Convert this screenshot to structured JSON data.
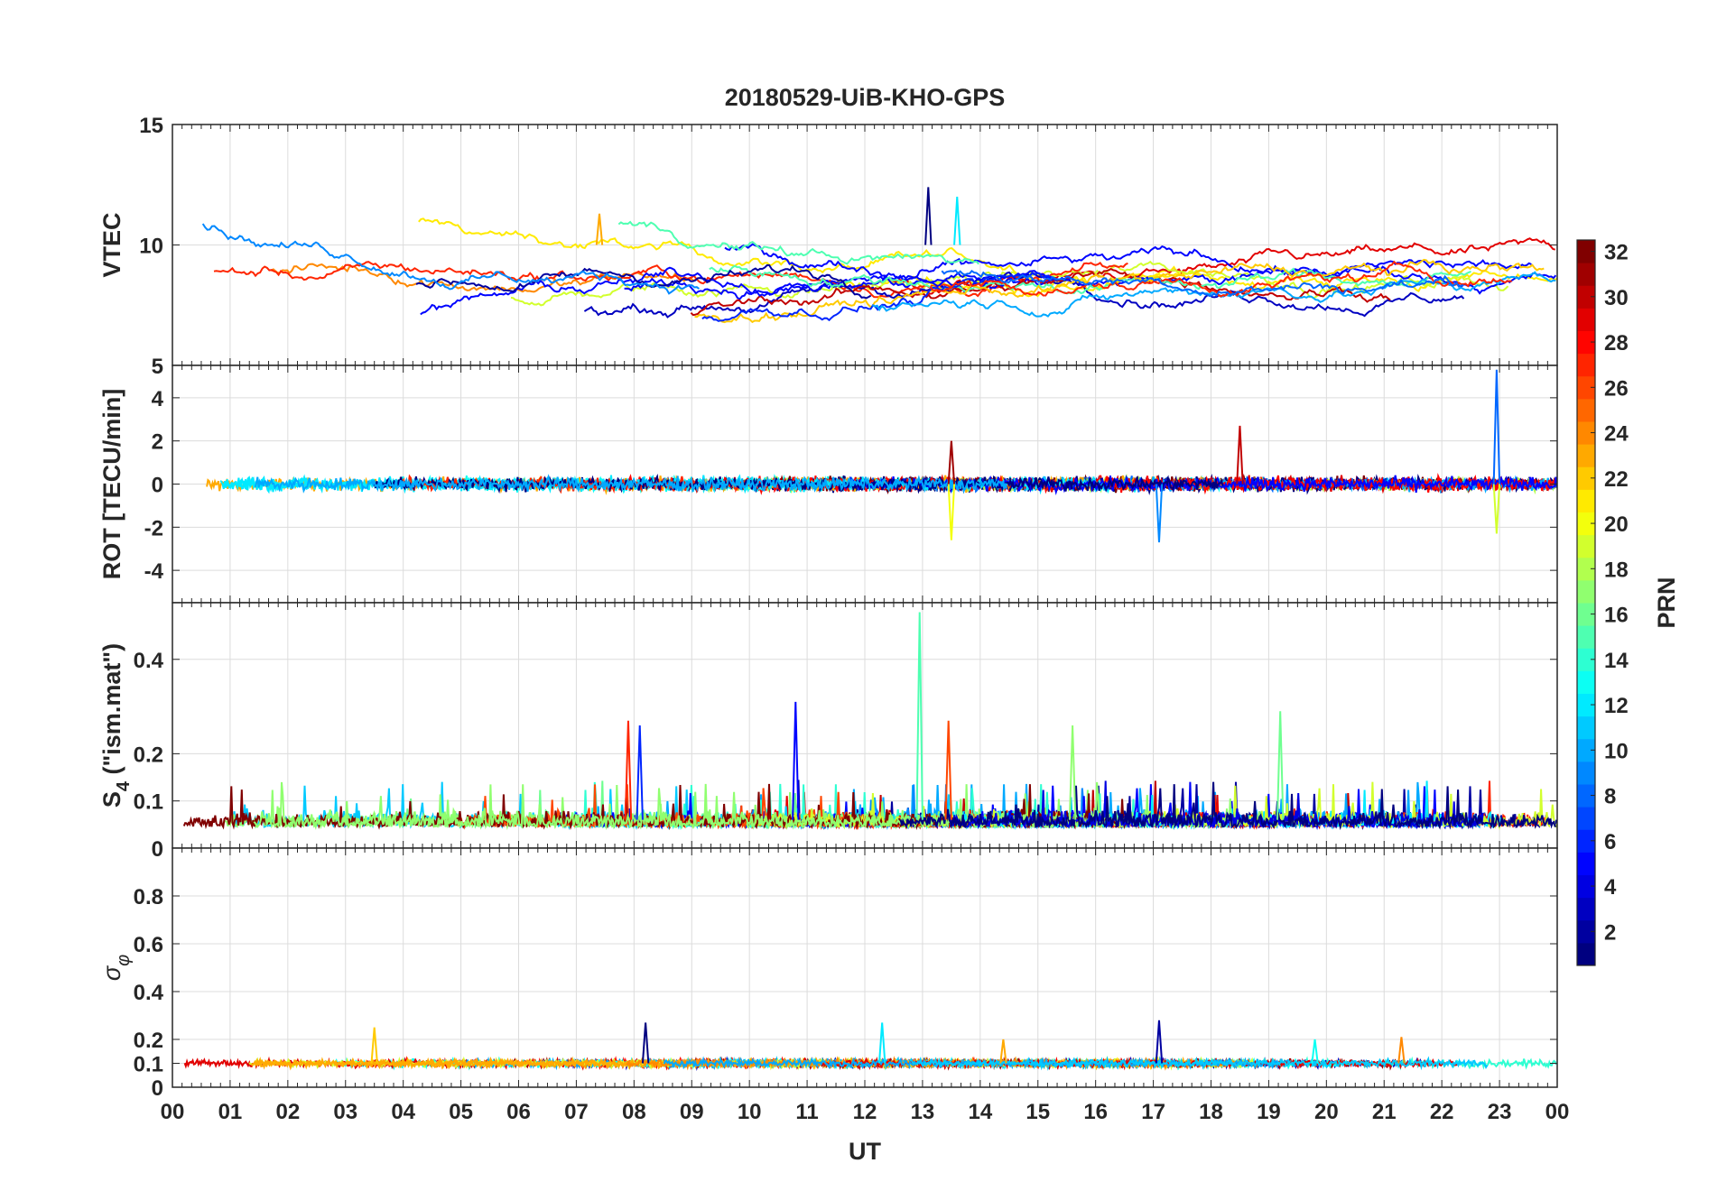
{
  "title": "20180529-UiB-KHO-GPS",
  "x_label": "UT",
  "colorbar": {
    "label": "PRN",
    "min": 1,
    "max": 32,
    "ticks": [
      "2",
      "4",
      "6",
      "8",
      "10",
      "12",
      "14",
      "16",
      "18",
      "20",
      "22",
      "24",
      "26",
      "28",
      "30",
      "32"
    ],
    "colormap": "jet"
  },
  "chart_data": [
    {
      "type": "line",
      "ylabel": "VTEC",
      "ylim": [
        5,
        15
      ],
      "yticks": [
        "5",
        "10",
        "15"
      ],
      "grid": true,
      "series_count": 32,
      "typical_range": [
        6.5,
        11
      ],
      "peaks": [
        {
          "x_hour": 13.1,
          "y": 12.4
        },
        {
          "x_hour": 13.6,
          "y": 12.0
        },
        {
          "x_hour": 7.4,
          "y": 11.3
        }
      ]
    },
    {
      "type": "line",
      "ylabel": "ROT [TECU/min]",
      "ylim": [
        -5.5,
        5.5
      ],
      "yticks": [
        "4",
        "2",
        "0",
        "-2",
        "-4"
      ],
      "grid": true,
      "series_count": 32,
      "typical_range": [
        -0.5,
        0.5
      ],
      "spikes": [
        {
          "x_hour": 22.95,
          "y": 5.3
        },
        {
          "x_hour": 22.95,
          "y": -2.3
        },
        {
          "x_hour": 18.5,
          "y": 2.7
        },
        {
          "x_hour": 17.1,
          "y": -2.7
        },
        {
          "x_hour": 13.5,
          "y": -2.6
        },
        {
          "x_hour": 13.5,
          "y": 2.0
        }
      ]
    },
    {
      "type": "line",
      "ylabel_main": "S",
      "ylabel_sub": "4",
      "ylabel_suffix": " (\"ism.mat\")",
      "ylim": [
        0,
        0.52
      ],
      "yticks": [
        "0.4",
        "0.2",
        "0.1",
        "0"
      ],
      "grid": true,
      "series_count": 32,
      "typical_range": [
        0.03,
        0.12
      ],
      "spikes": [
        {
          "x_hour": 12.95,
          "y": 0.5
        },
        {
          "x_hour": 13.45,
          "y": 0.27
        },
        {
          "x_hour": 10.8,
          "y": 0.31
        },
        {
          "x_hour": 19.2,
          "y": 0.29
        },
        {
          "x_hour": 7.9,
          "y": 0.27
        },
        {
          "x_hour": 8.1,
          "y": 0.26
        },
        {
          "x_hour": 15.6,
          "y": 0.26
        }
      ]
    },
    {
      "type": "line",
      "ylabel_main": "σ",
      "ylabel_sub": "φ",
      "ylim": [
        0,
        1
      ],
      "yticks": [
        "0.8",
        "0.6",
        "0.4",
        "0.2",
        "0.1",
        "0"
      ],
      "grid": true,
      "series_count": 32,
      "typical_range": [
        0.08,
        0.13
      ],
      "spikes": [
        {
          "x_hour": 3.5,
          "y": 0.25
        },
        {
          "x_hour": 8.2,
          "y": 0.27
        },
        {
          "x_hour": 12.3,
          "y": 0.27
        },
        {
          "x_hour": 14.4,
          "y": 0.2
        },
        {
          "x_hour": 17.1,
          "y": 0.28
        },
        {
          "x_hour": 19.8,
          "y": 0.2
        },
        {
          "x_hour": 21.3,
          "y": 0.21
        }
      ]
    }
  ],
  "x_axis": {
    "range_hours": [
      0,
      24
    ],
    "ticks": [
      "00",
      "01",
      "02",
      "03",
      "04",
      "05",
      "06",
      "07",
      "08",
      "09",
      "10",
      "11",
      "12",
      "13",
      "14",
      "15",
      "16",
      "17",
      "18",
      "19",
      "20",
      "21",
      "22",
      "23",
      "00"
    ]
  }
}
